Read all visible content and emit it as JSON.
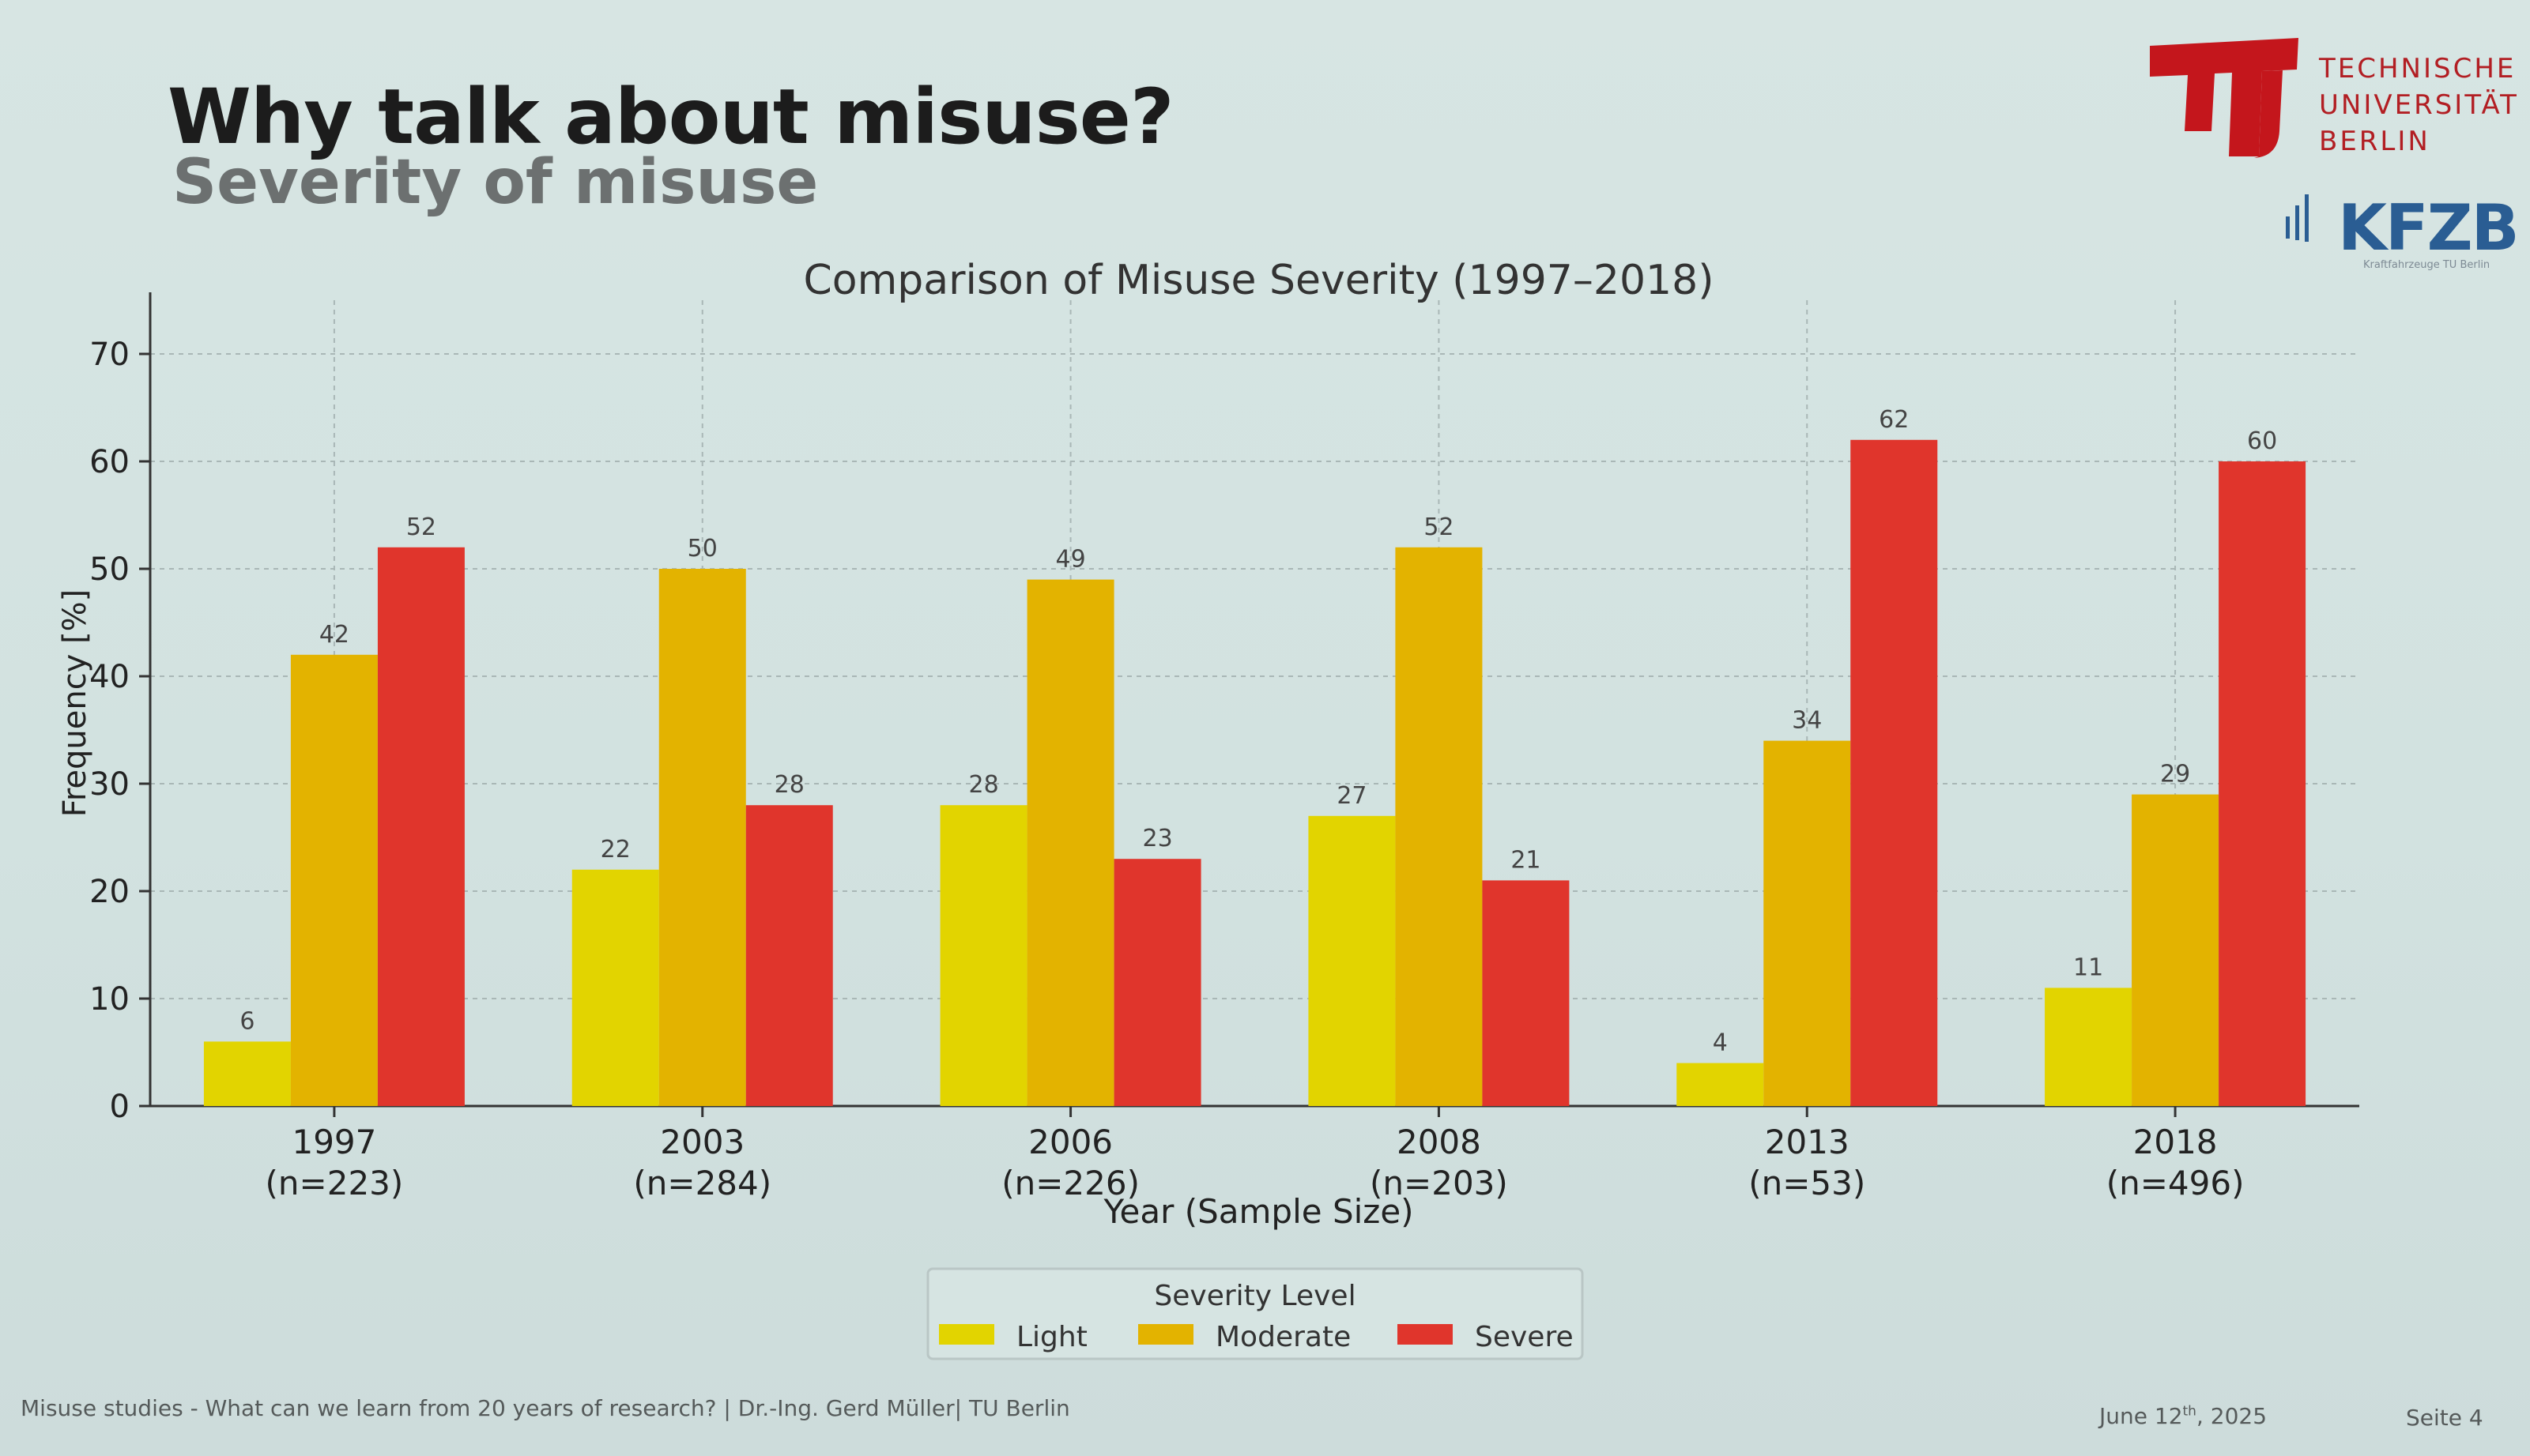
{
  "slide": {
    "title": "Why talk about misuse?",
    "subtitle": "Severity of misuse",
    "logo_tu_lines": [
      "TECHNISCHE",
      "UNIVERSITÄT",
      "BERLIN"
    ],
    "logo_kfzb": "KFZB",
    "logo_kfzb_sub": "Kraftfahrzeuge TU Berlin",
    "footer_left": "Misuse studies - What can we learn from 20 years of research? | Dr.-Ing. Gerd Müller| TU Berlin",
    "footer_date_main": "June 12",
    "footer_date_sup": "th",
    "footer_date_year": ", 2025",
    "footer_page": "Seite 4"
  },
  "chart_data": {
    "type": "bar",
    "title": "Comparison of Misuse Severity (1997–2018)",
    "xlabel": "Year (Sample Size)",
    "ylabel": "Frequency [%]",
    "ylim": [
      0,
      75
    ],
    "yticks": [
      0,
      10,
      20,
      30,
      40,
      50,
      60,
      70
    ],
    "grid": true,
    "categories": [
      {
        "year": "1997",
        "n": "(n=223)"
      },
      {
        "year": "2003",
        "n": "(n=284)"
      },
      {
        "year": "2006",
        "n": "(n=226)"
      },
      {
        "year": "2008",
        "n": "(n=203)"
      },
      {
        "year": "2013",
        "n": "(n=53)"
      },
      {
        "year": "2018",
        "n": "(n=496)"
      }
    ],
    "series": [
      {
        "name": "Light",
        "color": "#e2d400",
        "values": [
          6,
          22,
          28,
          27,
          4,
          11
        ]
      },
      {
        "name": "Moderate",
        "color": "#e3b300",
        "values": [
          42,
          50,
          49,
          52,
          34,
          29
        ]
      },
      {
        "name": "Severe",
        "color": "#e0352c",
        "values": [
          52,
          28,
          23,
          21,
          62,
          60
        ]
      }
    ],
    "legend": {
      "title": "Severity Level",
      "placement": "bottom-center"
    }
  }
}
